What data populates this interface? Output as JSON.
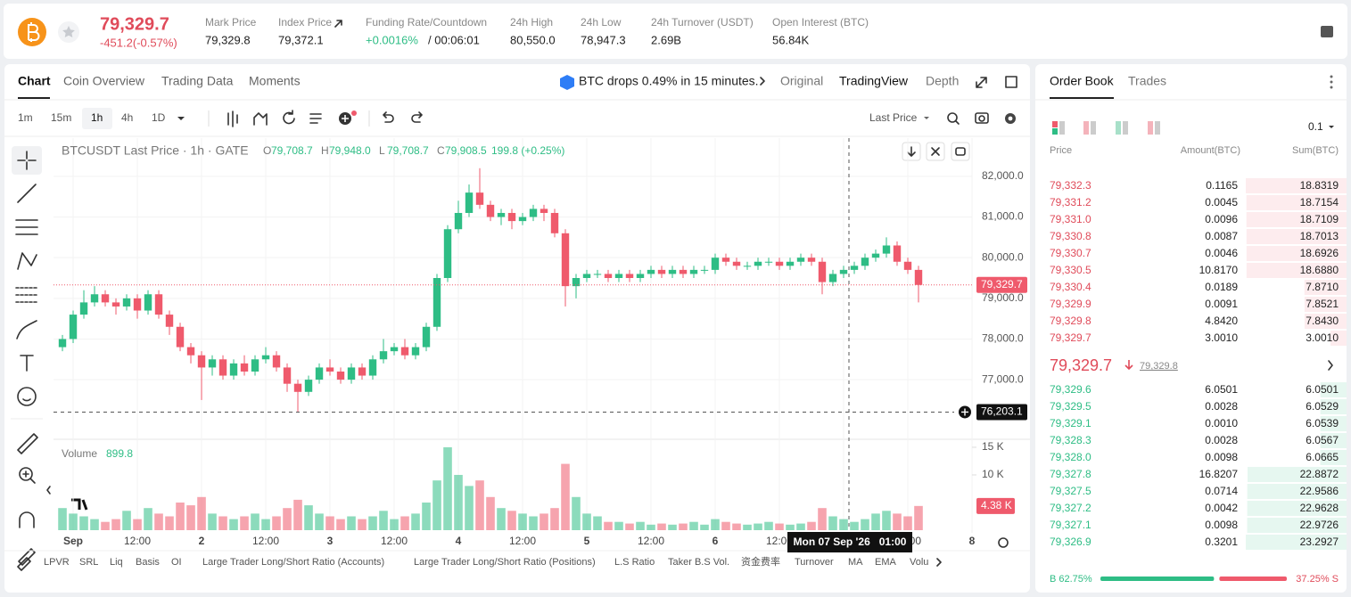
{
  "header": {
    "price": {
      "value": 79329.7,
      "label": "79,329.7"
    },
    "change": "-451.2(-0.57%)",
    "stats": [
      {
        "label": "Mark Price",
        "value": "79,329.8"
      },
      {
        "label": "Index Price",
        "value": "79,372.1"
      },
      {
        "label": "24h High",
        "value": "80,550.0"
      },
      {
        "label": "24h Low",
        "value": "78,947.3"
      },
      {
        "label": "24h Turnover (USDT)",
        "value": "2.69B"
      },
      {
        "label": "Open Interest (BTC)",
        "value": "56.84K"
      }
    ],
    "funding": {
      "label": "Funding Rate/Countdown",
      "rate": "+0.0016%",
      "countdown": "/ 00:06:01"
    }
  },
  "tabs": [
    "Chart",
    "Coin Overview",
    "Trading Data",
    "Moments"
  ],
  "news": "BTC drops 0.49% in 15 minutes.",
  "view_tabs": [
    "Original",
    "TradingView",
    "Depth"
  ],
  "intervals": [
    "1m",
    "15m",
    "1h",
    "4h",
    "1D"
  ],
  "price_type": "Last Price",
  "legend": {
    "symbol": "BTCUSDT Last Price · 1h · GATE",
    "ohlc": [
      {
        "key": "O",
        "value": "79,708.7"
      },
      {
        "key": "H",
        "value": "79,948.0"
      },
      {
        "key": "L",
        "value": "79,708.7"
      },
      {
        "key": "C",
        "value": "79,908.5"
      }
    ],
    "change": "199.8 (+0.25%)"
  },
  "chart_data": {
    "type": "candlestick",
    "up_color": "#2ebd85",
    "down_color": "#ef5a6c",
    "x": [
      -2,
      0,
      2,
      4,
      6,
      8,
      10,
      12,
      14,
      16,
      18,
      20,
      22,
      24,
      26,
      28,
      30,
      32,
      34,
      36,
      38,
      40,
      42,
      44,
      46,
      48,
      50,
      52,
      54,
      56,
      58,
      60,
      62,
      64,
      66,
      68,
      70,
      72,
      74,
      76,
      78,
      80,
      82,
      84,
      86,
      88,
      90,
      92,
      94,
      96,
      98,
      100,
      102,
      104,
      106,
      108,
      110,
      112,
      114,
      116,
      118,
      120,
      122,
      124,
      126,
      128,
      130,
      132,
      134,
      136,
      138,
      140,
      142,
      144,
      146,
      148,
      150,
      152,
      154,
      156,
      158
    ],
    "open": [
      77800,
      78000,
      78600,
      78900,
      79100,
      78900,
      78800,
      79000,
      78700,
      79100,
      78600,
      78300,
      77800,
      77600,
      77300,
      77500,
      77100,
      77400,
      77200,
      77500,
      77600,
      77300,
      76900,
      76700,
      77000,
      77300,
      77200,
      77000,
      77300,
      77100,
      77500,
      77700,
      77800,
      77600,
      77800,
      78300,
      79500,
      80700,
      81100,
      81600,
      81300,
      81000,
      81100,
      80900,
      81000,
      81200,
      81100,
      80600,
      79300,
      79500,
      79600,
      79600,
      79500,
      79600,
      79500,
      79600,
      79700,
      79600,
      79700,
      79600,
      79700,
      79700,
      80000,
      79900,
      79800,
      79800,
      79900,
      79900,
      79800,
      79900,
      80000,
      79900,
      79400,
      79600,
      79700,
      79800,
      80000,
      80100,
      80300,
      79900,
      79700
    ],
    "high": [
      78100,
      78700,
      79200,
      79300,
      79200,
      79000,
      79100,
      79100,
      79200,
      79200,
      78700,
      78400,
      77900,
      77700,
      77600,
      77600,
      77500,
      77600,
      77600,
      77800,
      77700,
      77400,
      77000,
      77100,
      77400,
      77500,
      77300,
      77400,
      77400,
      77600,
      78000,
      77900,
      78000,
      77900,
      78400,
      79600,
      80800,
      81400,
      81800,
      82200,
      81400,
      81200,
      81200,
      81100,
      81300,
      81300,
      81200,
      80700,
      79600,
      79700,
      79700,
      79700,
      79700,
      79700,
      79700,
      79800,
      79800,
      79800,
      79800,
      79800,
      79800,
      80100,
      80100,
      80000,
      79900,
      80000,
      80000,
      80000,
      80000,
      80100,
      80100,
      80000,
      79700,
      79800,
      79900,
      80100,
      80200,
      80500,
      80400,
      80000,
      79800
    ],
    "low": [
      77700,
      77900,
      78500,
      78800,
      78800,
      78600,
      78700,
      78500,
      78600,
      78500,
      78100,
      77700,
      77400,
      76500,
      77100,
      77000,
      77000,
      77100,
      77100,
      77400,
      77200,
      76700,
      76200,
      76600,
      76900,
      77100,
      76900,
      76900,
      77000,
      77000,
      77400,
      77600,
      77500,
      77500,
      77700,
      78200,
      79400,
      80600,
      81000,
      81200,
      80900,
      80800,
      80700,
      80800,
      80900,
      80900,
      80500,
      78800,
      79000,
      79400,
      79500,
      79400,
      79400,
      79400,
      79400,
      79500,
      79500,
      79500,
      79500,
      79500,
      79600,
      79600,
      79800,
      79700,
      79700,
      79700,
      79800,
      79700,
      79700,
      79800,
      79800,
      79100,
      79300,
      79500,
      79600,
      79700,
      79900,
      80000,
      79800,
      79600,
      78900
    ],
    "close": [
      78000,
      78600,
      78900,
      79100,
      78900,
      78800,
      79000,
      78700,
      79100,
      78600,
      78300,
      77800,
      77600,
      77300,
      77500,
      77100,
      77400,
      77200,
      77500,
      77600,
      77300,
      76900,
      76700,
      77000,
      77300,
      77200,
      77000,
      77300,
      77100,
      77500,
      77700,
      77800,
      77600,
      77800,
      78300,
      79500,
      80700,
      81100,
      81600,
      81300,
      81000,
      81100,
      80900,
      81000,
      81200,
      81100,
      80600,
      79300,
      79500,
      79600,
      79600,
      79500,
      79600,
      79500,
      79600,
      79700,
      79600,
      79700,
      79600,
      79700,
      79700,
      80000,
      79900,
      79800,
      79800,
      79900,
      79900,
      79800,
      79900,
      80000,
      79900,
      79400,
      79600,
      79700,
      79800,
      80000,
      80100,
      80300,
      79900,
      79700,
      79330
    ],
    "xlim": [
      -3.67,
      168
    ],
    "xticks": [
      {
        "value": 0,
        "label": "Sep"
      },
      {
        "value": 12,
        "label": "12:00"
      },
      {
        "value": 24,
        "label": "2"
      },
      {
        "value": 36,
        "label": "12:00"
      },
      {
        "value": 48,
        "label": "3"
      },
      {
        "value": 60,
        "label": "12:00"
      },
      {
        "value": 72,
        "label": "4"
      },
      {
        "value": 84,
        "label": "12:00"
      },
      {
        "value": 96,
        "label": "5"
      },
      {
        "value": 108,
        "label": "12:00"
      },
      {
        "value": 120,
        "label": "6"
      },
      {
        "value": 132,
        "label": "12:00"
      },
      {
        "value": 144,
        "label": "7"
      },
      {
        "value": 156,
        "label": "12:00"
      },
      {
        "value": 168,
        "label": "8"
      }
    ],
    "ylim": [
      75600,
      82940
    ],
    "yticks": [
      {
        "value": 77000,
        "label": "77,000.0"
      },
      {
        "value": 78000,
        "label": "78,000.0"
      },
      {
        "value": 79000,
        "label": "79,000.0"
      },
      {
        "value": 80000,
        "label": "80,000.0"
      },
      {
        "value": 81000,
        "label": "81,000.0"
      },
      {
        "value": 82000,
        "label": "82,000.0"
      }
    ],
    "grid": true,
    "last_price": {
      "value": 79329.7,
      "label": "79,329.7"
    },
    "crosshair": {
      "value": 76203.1,
      "label": "76,203.1"
    },
    "crosshair_time": {
      "value": 145,
      "label": "Mon 07 Sep '26   01:00"
    },
    "volume": {
      "title": "Volume",
      "current": "899.8",
      "values": [
        4000,
        3000,
        2500,
        2000,
        1500,
        2000,
        3500,
        2000,
        4000,
        3000,
        2500,
        5000,
        4500,
        6000,
        3000,
        2500,
        2000,
        2500,
        3000,
        2000,
        2500,
        4000,
        5500,
        4500,
        3000,
        2500,
        2000,
        2500,
        2000,
        2500,
        3500,
        2000,
        2500,
        3000,
        5000,
        9000,
        15000,
        10000,
        8000,
        9000,
        6000,
        4000,
        3500,
        3000,
        2500,
        3000,
        4000,
        12000,
        6000,
        3000,
        2500,
        1500,
        1500,
        1200,
        1500,
        1000,
        1200,
        1000,
        1200,
        1500,
        1000,
        2000,
        1500,
        1200,
        1000,
        1200,
        1500,
        1200,
        1000,
        1200,
        1500,
        4000,
        2500,
        2000,
        1500,
        2000,
        3000,
        3500,
        3000,
        2500,
        4380
      ],
      "last_label": "4.38 K",
      "ylim": [
        0,
        15800
      ],
      "yticks": [
        {
          "value": 10000,
          "label": "10 K"
        },
        {
          "value": 15000,
          "label": "15 K"
        }
      ]
    }
  },
  "indicators": [
    "LPVR",
    "SRL",
    "Liq",
    "Basis",
    "OI",
    "Large Trader Long/Short Ratio (Accounts)",
    "Large Trader Long/Short Ratio (Positions)",
    "L.S Ratio",
    "Taker B.S Vol.",
    "资金费率",
    "Turnover",
    "MA",
    "EMA",
    "Volu"
  ],
  "order_book": {
    "tabs": [
      "Order Book",
      "Trades"
    ],
    "step": "0.1",
    "columns": [
      "Price",
      "Amount(BTC)",
      "Sum(BTC)"
    ],
    "asks": [
      {
        "price": "79,332.3",
        "amount": "0.1165",
        "sum": {
          "value": 18.8319,
          "label": "18.8319"
        }
      },
      {
        "price": "79,331.2",
        "amount": "0.0045",
        "sum": {
          "value": 18.7154,
          "label": "18.7154"
        }
      },
      {
        "price": "79,331.0",
        "amount": "0.0096",
        "sum": {
          "value": 18.7109,
          "label": "18.7109"
        }
      },
      {
        "price": "79,330.8",
        "amount": "0.0087",
        "sum": {
          "value": 18.7013,
          "label": "18.7013"
        }
      },
      {
        "price": "79,330.7",
        "amount": "0.0046",
        "sum": {
          "value": 18.6926,
          "label": "18.6926"
        }
      },
      {
        "price": "79,330.5",
        "amount": "10.8170",
        "sum": {
          "value": 18.688,
          "label": "18.6880"
        }
      },
      {
        "price": "79,330.4",
        "amount": "0.0189",
        "sum": {
          "value": 7.871,
          "label": "7.8710"
        }
      },
      {
        "price": "79,329.9",
        "amount": "0.0091",
        "sum": {
          "value": 7.8521,
          "label": "7.8521"
        }
      },
      {
        "price": "79,329.8",
        "amount": "4.8420",
        "sum": {
          "value": 7.843,
          "label": "7.8430"
        }
      },
      {
        "price": "79,329.7",
        "amount": "3.0010",
        "sum": {
          "value": 3.001,
          "label": "3.0010"
        }
      }
    ],
    "mid": {
      "price": "79,329.7",
      "mark": "79,329.8"
    },
    "bids": [
      {
        "price": "79,329.6",
        "amount": "6.0501",
        "sum": {
          "value": 6.0501,
          "label": "6.0501"
        }
      },
      {
        "price": "79,329.5",
        "amount": "0.0028",
        "sum": {
          "value": 6.0529,
          "label": "6.0529"
        }
      },
      {
        "price": "79,329.1",
        "amount": "0.0010",
        "sum": {
          "value": 6.0539,
          "label": "6.0539"
        }
      },
      {
        "price": "79,328.3",
        "amount": "0.0028",
        "sum": {
          "value": 6.0567,
          "label": "6.0567"
        }
      },
      {
        "price": "79,328.0",
        "amount": "0.0098",
        "sum": {
          "value": 6.0665,
          "label": "6.0665"
        }
      },
      {
        "price": "79,327.8",
        "amount": "16.8207",
        "sum": {
          "value": 22.8872,
          "label": "22.8872"
        }
      },
      {
        "price": "79,327.5",
        "amount": "0.0714",
        "sum": {
          "value": 22.9586,
          "label": "22.9586"
        }
      },
      {
        "price": "79,327.2",
        "amount": "0.0042",
        "sum": {
          "value": 22.9628,
          "label": "22.9628"
        }
      },
      {
        "price": "79,327.1",
        "amount": "0.0098",
        "sum": {
          "value": 22.9726,
          "label": "22.9726"
        }
      },
      {
        "price": "79,326.9",
        "amount": "0.3201",
        "sum": {
          "value": 23.2927,
          "label": "23.2927"
        }
      }
    ],
    "buy": {
      "value": 62.75,
      "label": "B 62.75%"
    },
    "sell": {
      "value": 37.25,
      "label": "37.25% S"
    }
  }
}
